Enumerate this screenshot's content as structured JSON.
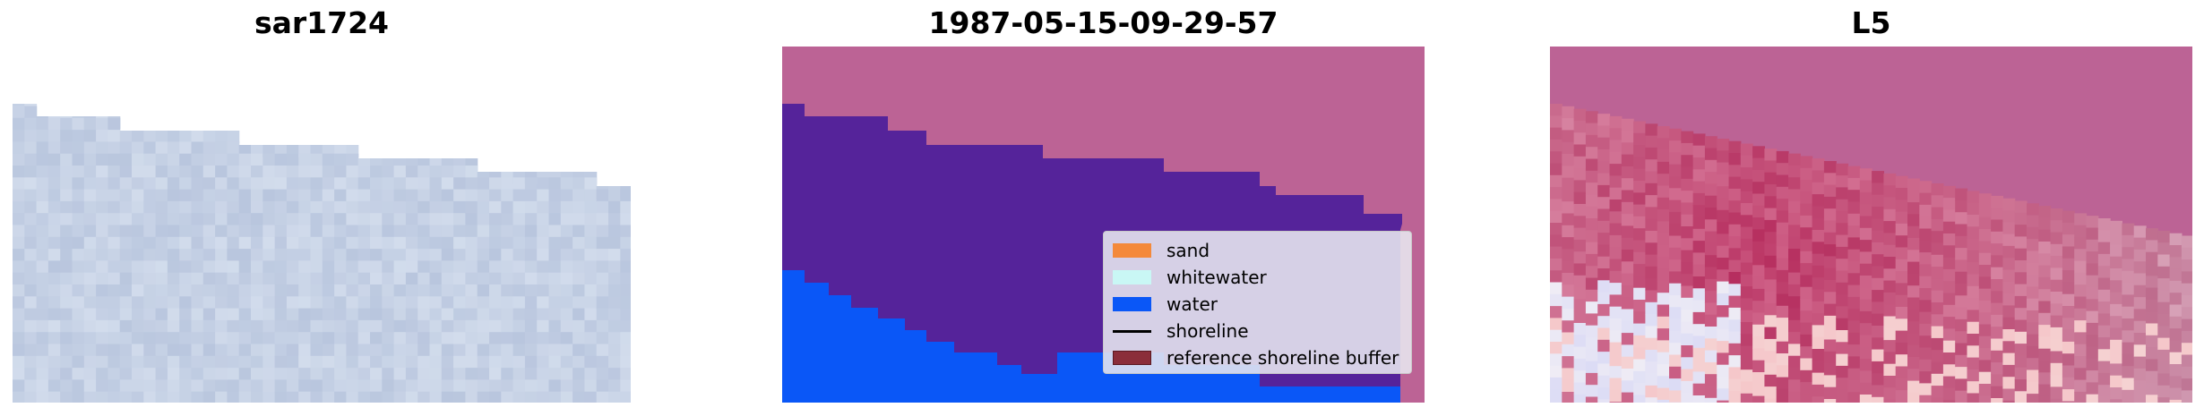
{
  "panels": [
    {
      "title": "sar1724"
    },
    {
      "title": "1987-05-15-09-29-57"
    },
    {
      "title": "L5"
    }
  ],
  "legend": {
    "items": [
      {
        "label": "sand",
        "color": "#f4893a",
        "kind": "patch"
      },
      {
        "label": "whitewater",
        "color": "#c9f7f5",
        "kind": "patch"
      },
      {
        "label": "water",
        "color": "#0a57f7",
        "kind": "patch"
      },
      {
        "label": "shoreline",
        "color": "#000000",
        "kind": "line"
      },
      {
        "label": "reference shoreline buffer",
        "color": "#8b2e3a",
        "kind": "patch"
      }
    ]
  },
  "colors": {
    "land_overlay": "#bc6395",
    "sea_class": "#55239a",
    "water_class": "#0a57f7",
    "background": "#ffffff"
  }
}
